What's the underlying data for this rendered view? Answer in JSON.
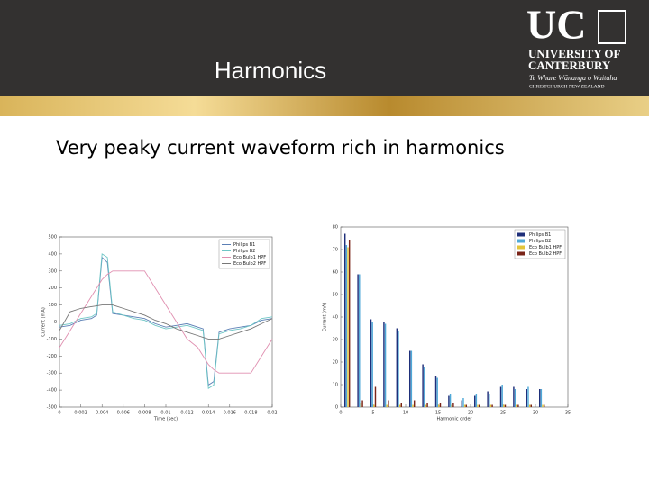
{
  "header": {
    "title": "Harmonics",
    "logo": {
      "mark": "UC",
      "lines": [
        "UNIVERSITY OF",
        "CANTERBURY",
        "Te Whare Wānanga o Waitaha",
        "CHRISTCHURCH NEW ZEALAND"
      ]
    }
  },
  "body": {
    "text": "Very peaky current waveform rich in harmonics"
  },
  "chart_data": [
    {
      "type": "line",
      "x_label": "Time (sec)",
      "y_label": "Current (mA)",
      "x": [
        0,
        0.001,
        0.002,
        0.003,
        0.0035,
        0.004,
        0.0045,
        0.005,
        0.006,
        0.007,
        0.008,
        0.009,
        0.01,
        0.011,
        0.012,
        0.013,
        0.0135,
        0.014,
        0.0145,
        0.015,
        0.016,
        0.017,
        0.018,
        0.019,
        0.02
      ],
      "series": [
        {
          "name": "Philips B1",
          "color": "#5b7fb5",
          "values": [
            -30,
            -20,
            10,
            20,
            40,
            380,
            350,
            50,
            40,
            30,
            20,
            -10,
            -30,
            -20,
            -10,
            -30,
            -40,
            -370,
            -350,
            -60,
            -40,
            -30,
            -20,
            10,
            20
          ]
        },
        {
          "name": "Philips B2",
          "color": "#6fc6c6",
          "values": [
            -20,
            -10,
            20,
            30,
            50,
            400,
            380,
            60,
            40,
            20,
            10,
            -20,
            -40,
            -30,
            -20,
            -40,
            -50,
            -390,
            -370,
            -70,
            -50,
            -40,
            -20,
            20,
            30
          ]
        },
        {
          "name": "Eco Bulb1 HPF",
          "color": "#e08fb0",
          "values": [
            -150,
            -50,
            50,
            150,
            200,
            250,
            280,
            300,
            300,
            300,
            300,
            200,
            100,
            0,
            -100,
            -150,
            -200,
            -250,
            -280,
            -300,
            -300,
            -300,
            -300,
            -200,
            -100
          ]
        },
        {
          "name": "Eco Bulb2 HPF",
          "color": "#777777",
          "values": [
            -50,
            60,
            80,
            90,
            95,
            100,
            100,
            100,
            80,
            60,
            40,
            10,
            -10,
            -40,
            -60,
            -80,
            -90,
            -100,
            -100,
            -100,
            -80,
            -60,
            -40,
            -10,
            20
          ]
        }
      ],
      "xlim": [
        0,
        0.02
      ],
      "xticks": [
        0,
        0.002,
        0.004,
        0.006,
        0.008,
        0.01,
        0.012,
        0.014,
        0.016,
        0.018,
        0.02
      ],
      "ylim": [
        -500,
        500
      ],
      "yticks": [
        -500,
        -400,
        -300,
        -200,
        -100,
        0,
        100,
        200,
        300,
        400,
        500
      ],
      "legend": "upper right"
    },
    {
      "type": "bar",
      "x_label": "Harmonic order",
      "y_label": "Current (mA)",
      "x": [
        1,
        3,
        5,
        7,
        9,
        11,
        13,
        15,
        17,
        19,
        21,
        23,
        25,
        27,
        29,
        31
      ],
      "series": [
        {
          "name": "Philips B1",
          "color": "#1f2f7a",
          "values": [
            77,
            59,
            39,
            38,
            35,
            25,
            19,
            14,
            5,
            3,
            5,
            7,
            9,
            9,
            8,
            8
          ]
        },
        {
          "name": "Philips B2",
          "color": "#4fa9d8",
          "values": [
            72,
            59,
            38,
            37,
            34,
            25,
            18,
            13,
            6,
            4,
            6,
            6,
            10,
            8,
            9,
            8
          ]
        },
        {
          "name": "Eco Bulb1 HPF",
          "color": "#e3c53a",
          "values": [
            71,
            2,
            1,
            1,
            1,
            1,
            1,
            1,
            1,
            1,
            1,
            1,
            1,
            1,
            1,
            1
          ]
        },
        {
          "name": "Eco Bulb2 HPF",
          "color": "#7a2418",
          "values": [
            74,
            3,
            9,
            3,
            2,
            3,
            2,
            2,
            2,
            1,
            1,
            1,
            1,
            1,
            1,
            1
          ]
        }
      ],
      "xlim": [
        0,
        35
      ],
      "xticks": [
        0,
        5,
        10,
        15,
        20,
        25,
        30,
        35
      ],
      "ylim": [
        0,
        80
      ],
      "yticks": [
        0,
        10,
        20,
        30,
        40,
        50,
        60,
        70,
        80
      ],
      "legend": "upper right"
    }
  ]
}
